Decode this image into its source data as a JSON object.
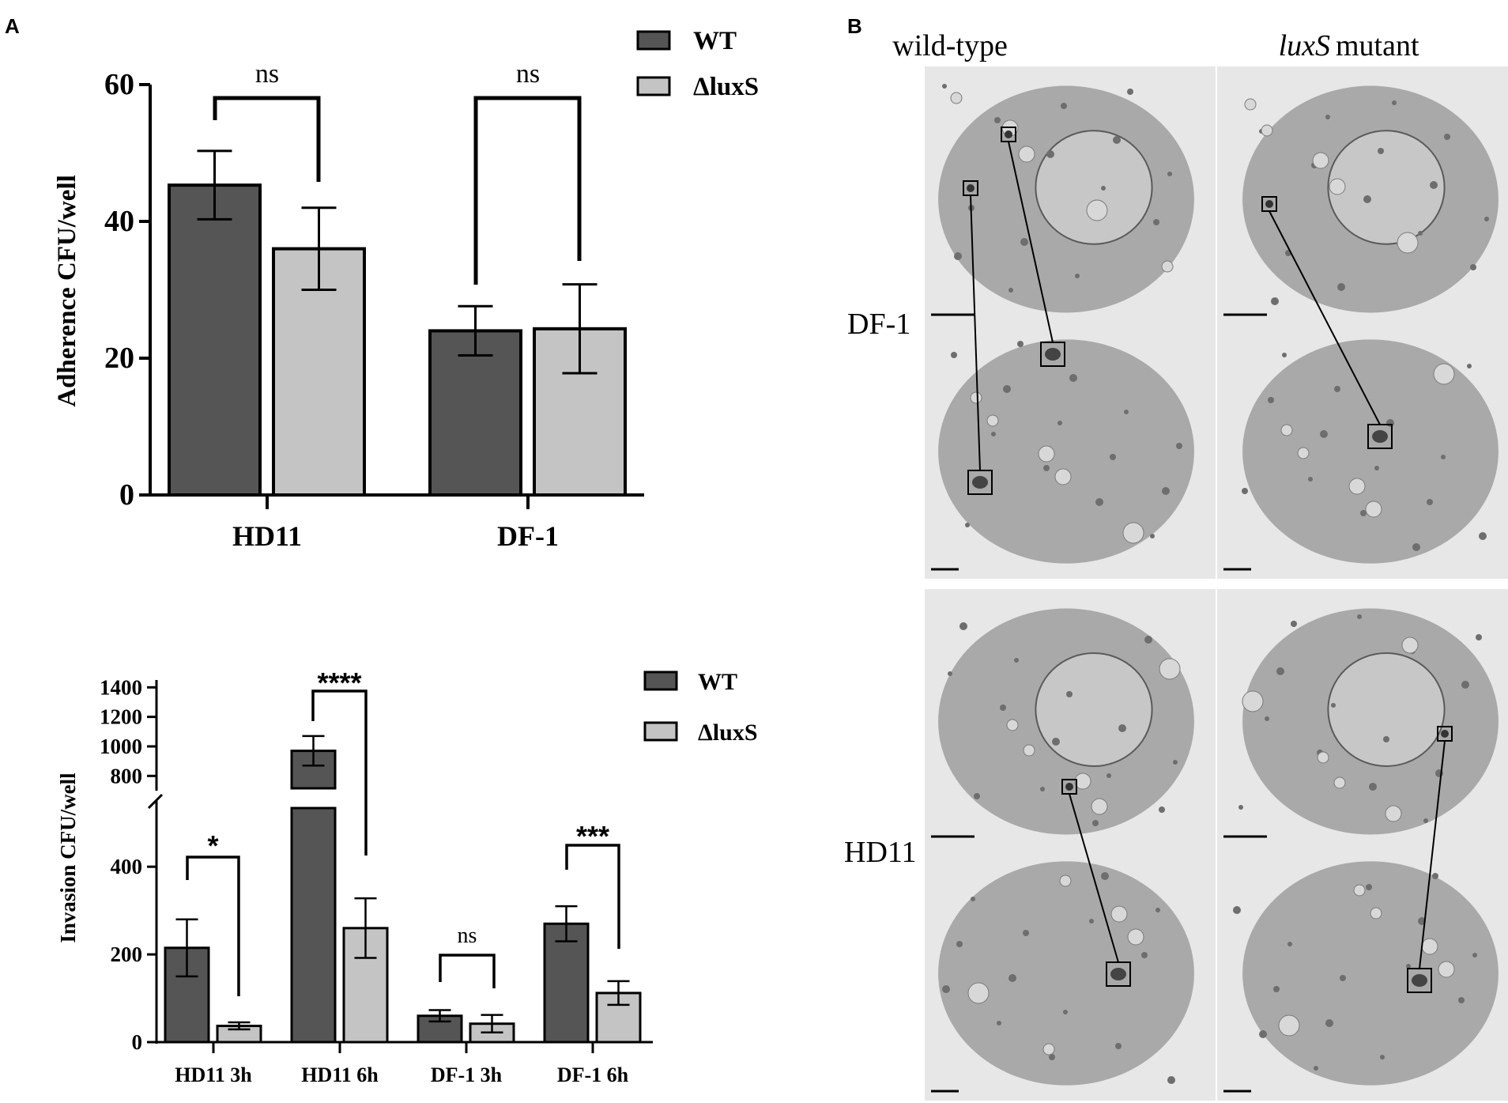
{
  "panels": {
    "a_label": "A",
    "b_label": "B"
  },
  "colors": {
    "wt": "#555555",
    "luxs": "#c4c4c4",
    "axis": "#000000",
    "em_bg": "#e7e7e7",
    "em_cell": "#a9a9a9",
    "em_nucleus": "#c7c7c7"
  },
  "chart_data": [
    {
      "type": "bar",
      "ylabel": "Adherence CFU/well",
      "xlabel": "",
      "categories": [
        "HD11",
        "DF-1"
      ],
      "ylim": [
        0,
        60
      ],
      "yticks": [
        "0",
        "20",
        "40",
        "60"
      ],
      "series": [
        {
          "name": "WT",
          "values": [
            45.3,
            24.0
          ],
          "errors": [
            5.0,
            3.6
          ]
        },
        {
          "name": "ΔluxS",
          "values": [
            36.0,
            24.3
          ],
          "errors": [
            6.0,
            6.5
          ]
        }
      ],
      "significance": [
        "ns",
        "ns"
      ],
      "legend": "top-right"
    },
    {
      "type": "bar",
      "ylabel": "Invasion CFU/well",
      "xlabel": "",
      "categories": [
        "HD11 3h",
        "HD11 6h",
        "DF-1 3h",
        "DF-1 6h"
      ],
      "broken_axis": true,
      "ylim_lower": [
        0,
        550
      ],
      "ylim_upper": [
        700,
        1450
      ],
      "yticks_lower": [
        "0",
        "200",
        "400"
      ],
      "yticks_upper": [
        "800",
        "1000",
        "1200",
        "1400"
      ],
      "series": [
        {
          "name": "WT",
          "values": [
            215,
            970,
            60,
            270
          ],
          "errors": [
            65,
            100,
            13,
            40
          ]
        },
        {
          "name": "ΔluxS",
          "values": [
            37,
            260,
            42,
            112
          ],
          "errors": [
            8,
            68,
            20,
            27
          ]
        }
      ],
      "significance": [
        "*",
        "****",
        "ns",
        "***"
      ],
      "legend": "top-right"
    }
  ],
  "em_panel": {
    "col_headers": [
      "wild-type",
      "mutant"
    ],
    "col_header_italic": "luxS",
    "row_labels": [
      "DF-1",
      "HD11"
    ]
  }
}
